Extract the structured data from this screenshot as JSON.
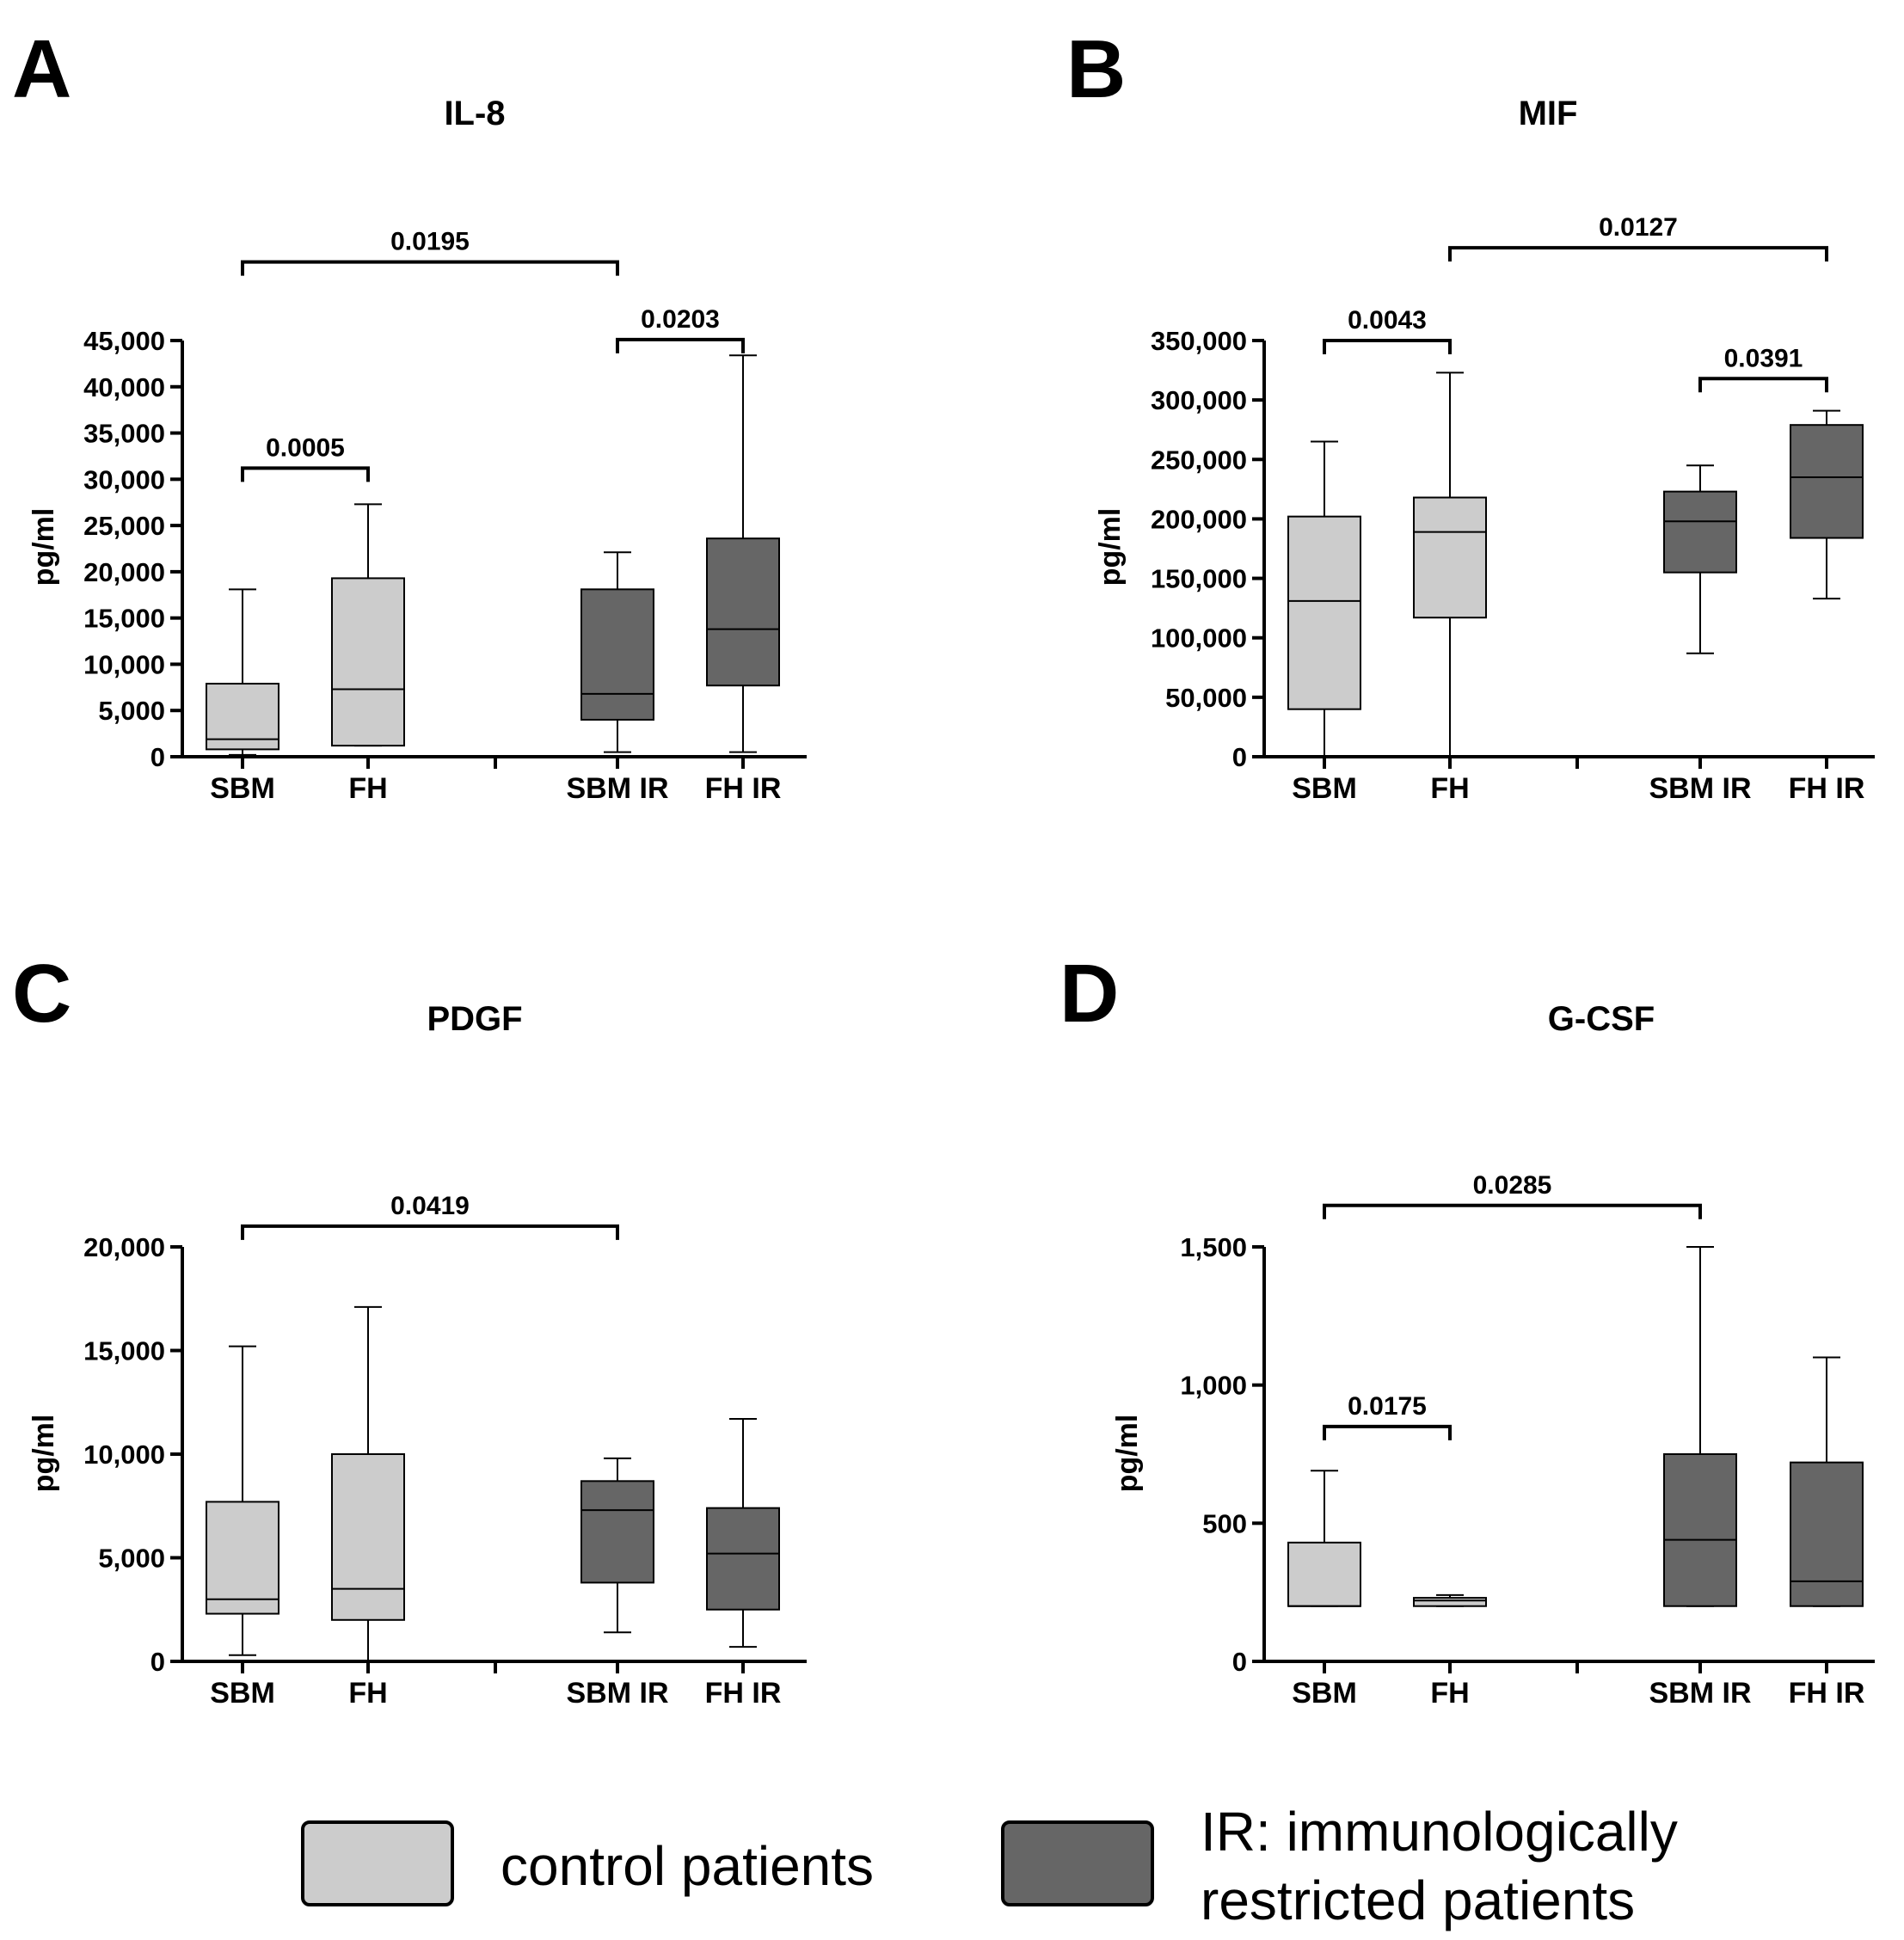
{
  "colors": {
    "control": "#cccccc",
    "ir": "#666666",
    "line": "#000000"
  },
  "legend": {
    "control_label": "control patients",
    "ir_label_line1": "IR: immunologically",
    "ir_label_line2": "restricted patients"
  },
  "chart_data": [
    {
      "type": "boxplot",
      "letter": "A",
      "title": "IL-8",
      "ylabel": "pg/ml",
      "ylim": [
        0,
        45000
      ],
      "ticks": [
        0,
        5000,
        10000,
        15000,
        20000,
        25000,
        30000,
        35000,
        40000,
        45000
      ],
      "tick_labels": [
        "0",
        "5,000",
        "10,000",
        "15,000",
        "20,000",
        "25,000",
        "30,000",
        "35,000",
        "40,000",
        "45,000"
      ],
      "categories": [
        "SBM",
        "FH",
        "SBM IR",
        "FH IR"
      ],
      "groups": [
        "control",
        "control",
        "ir",
        "ir"
      ],
      "boxes": [
        {
          "min": 200,
          "q1": 800,
          "median": 1900,
          "q3": 7900,
          "max": 18100
        },
        {
          "min": 1200,
          "q1": 1200,
          "median": 7300,
          "q3": 19300,
          "max": 27300
        },
        {
          "min": 500,
          "q1": 4000,
          "median": 6800,
          "q3": 18100,
          "max": 22100
        },
        {
          "min": 500,
          "q1": 7700,
          "median": 13800,
          "q3": 23600,
          "max": 43400
        }
      ],
      "comparisons": [
        {
          "from": 0,
          "to": 2,
          "value": "0.0195",
          "at": 53500
        },
        {
          "from": 2,
          "to": 3,
          "value": "0.0203",
          "at": 45100
        },
        {
          "from": 0,
          "to": 1,
          "value": "0.0005",
          "at": 31200
        }
      ]
    },
    {
      "type": "boxplot",
      "letter": "B",
      "title": "MIF",
      "ylabel": "pg/ml",
      "ylim": [
        0,
        350000
      ],
      "ticks": [
        0,
        50000,
        100000,
        150000,
        200000,
        250000,
        300000,
        350000
      ],
      "tick_labels": [
        "0",
        "50,000",
        "100,000",
        "150,000",
        "200,000",
        "250,000",
        "300,000",
        "350,000"
      ],
      "categories": [
        "SBM",
        "FH",
        "SBM IR",
        "FH IR"
      ],
      "groups": [
        "control",
        "control",
        "ir",
        "ir"
      ],
      "boxes": [
        {
          "min": 0,
          "q1": 40000,
          "median": 131000,
          "q3": 202000,
          "max": 265000
        },
        {
          "min": 0,
          "q1": 117000,
          "median": 189000,
          "q3": 218000,
          "max": 323000
        },
        {
          "min": 87000,
          "q1": 155000,
          "median": 198000,
          "q3": 223000,
          "max": 245000
        },
        {
          "min": 133000,
          "q1": 184000,
          "median": 235000,
          "q3": 279000,
          "max": 291000
        }
      ],
      "comparisons": [
        {
          "from": 1,
          "to": 3,
          "value": "0.0127",
          "at": 428000
        },
        {
          "from": 0,
          "to": 1,
          "value": "0.0043",
          "at": 350000
        },
        {
          "from": 2,
          "to": 3,
          "value": "0.0391",
          "at": 318000
        }
      ]
    },
    {
      "type": "boxplot",
      "letter": "C",
      "title": "PDGF",
      "ylabel": "pg/ml",
      "ylim": [
        0,
        20000
      ],
      "ticks": [
        0,
        5000,
        10000,
        15000,
        20000
      ],
      "tick_labels": [
        "0",
        "5,000",
        "10,000",
        "15,000",
        "20,000"
      ],
      "categories": [
        "SBM",
        "FH",
        "SBM IR",
        "FH IR"
      ],
      "groups": [
        "control",
        "control",
        "ir",
        "ir"
      ],
      "boxes": [
        {
          "min": 300,
          "q1": 2300,
          "median": 3000,
          "q3": 7700,
          "max": 15200
        },
        {
          "min": 0,
          "q1": 2000,
          "median": 3500,
          "q3": 10000,
          "max": 17100
        },
        {
          "min": 1400,
          "q1": 3800,
          "median": 7300,
          "q3": 8700,
          "max": 9800
        },
        {
          "min": 700,
          "q1": 2500,
          "median": 5200,
          "q3": 7400,
          "max": 11700
        }
      ],
      "comparisons": [
        {
          "from": 0,
          "to": 2,
          "value": "0.0419",
          "at": 21000
        }
      ]
    },
    {
      "type": "boxplot",
      "letter": "D",
      "title": "G-CSF",
      "ylabel": "pg/ml",
      "ylim": [
        0,
        1500
      ],
      "ticks": [
        0,
        500,
        1000,
        1500
      ],
      "tick_labels": [
        "0",
        "500",
        "1,000",
        "1,500"
      ],
      "categories": [
        "SBM",
        "FH",
        "SBM IR",
        "FH IR"
      ],
      "groups": [
        "control",
        "control",
        "ir",
        "ir"
      ],
      "boxes": [
        {
          "min": 200,
          "q1": 200,
          "median": 200,
          "q3": 430,
          "max": 690
        },
        {
          "min": 200,
          "q1": 200,
          "median": 220,
          "q3": 230,
          "max": 240
        },
        {
          "min": 200,
          "q1": 200,
          "median": 440,
          "q3": 750,
          "max": 1500
        },
        {
          "min": 200,
          "q1": 200,
          "median": 290,
          "q3": 720,
          "max": 1100
        }
      ],
      "comparisons": [
        {
          "from": 0,
          "to": 2,
          "value": "0.0285",
          "at": 1650
        },
        {
          "from": 0,
          "to": 1,
          "value": "0.0175",
          "at": 850
        }
      ]
    }
  ]
}
